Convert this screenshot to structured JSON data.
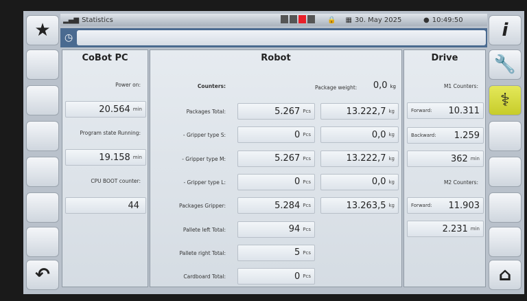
{
  "header": {
    "title": "Statistics",
    "date": "30. May 2025",
    "time": "10:49:50",
    "status_colors": [
      "#555555",
      "#555555",
      "#e8202a",
      "#555555"
    ]
  },
  "left_buttons": [
    "star-icon",
    "",
    "",
    "",
    "",
    "",
    "",
    "back-arrow-icon"
  ],
  "right_buttons": [
    "info-icon",
    "wrench-icon",
    "stethoscope-icon",
    "",
    "",
    "",
    "",
    "home-icon"
  ],
  "active_color": "#d4d936",
  "cobot": {
    "title": "CoBot PC",
    "items": [
      {
        "label": "Power on:",
        "value": "20.564",
        "unit": "min"
      },
      {
        "label": "Program state Running:",
        "value": "19.158",
        "unit": "min"
      },
      {
        "label": "CPU BOOT counter:",
        "value": "44",
        "unit": ""
      }
    ]
  },
  "robot": {
    "title": "Robot",
    "counters_label": "Counters:",
    "package_weight_label": "Package weight:",
    "package_weight": {
      "value": "0,0",
      "unit": "kg"
    },
    "rows": [
      {
        "label": "Packages Total:",
        "pcs": "5.267",
        "kg": "13.222,7"
      },
      {
        "label": "- Gripper type S:",
        "pcs": "0",
        "kg": "0,0"
      },
      {
        "label": "- Gripper type M:",
        "pcs": "5.267",
        "kg": "13.222,7"
      },
      {
        "label": "- Gripper type L:",
        "pcs": "0",
        "kg": "0,0"
      },
      {
        "label": "Packages Gripper:",
        "pcs": "5.284",
        "kg": "13.263,5"
      },
      {
        "label": "Pallete left Total:",
        "pcs": "94",
        "kg": null
      },
      {
        "label": "Pallete right Total:",
        "pcs": "5",
        "kg": null
      },
      {
        "label": "Cardboard Total:",
        "pcs": "0",
        "kg": null
      }
    ],
    "pcs_unit": "Pcs",
    "kg_unit": "kg"
  },
  "drive": {
    "title": "Drive",
    "m1_label": "M1 Counters:",
    "m2_label": "M2 Counters:",
    "m1_forward": {
      "label": "Forward:",
      "value": "10.311"
    },
    "m1_backward": {
      "label": "Backward:",
      "value": "1.259"
    },
    "m1_time": {
      "value": "362",
      "unit": "min"
    },
    "m2_forward": {
      "label": "Forward:",
      "value": "11.903"
    },
    "m2_time": {
      "value": "2.231",
      "unit": "min"
    }
  }
}
